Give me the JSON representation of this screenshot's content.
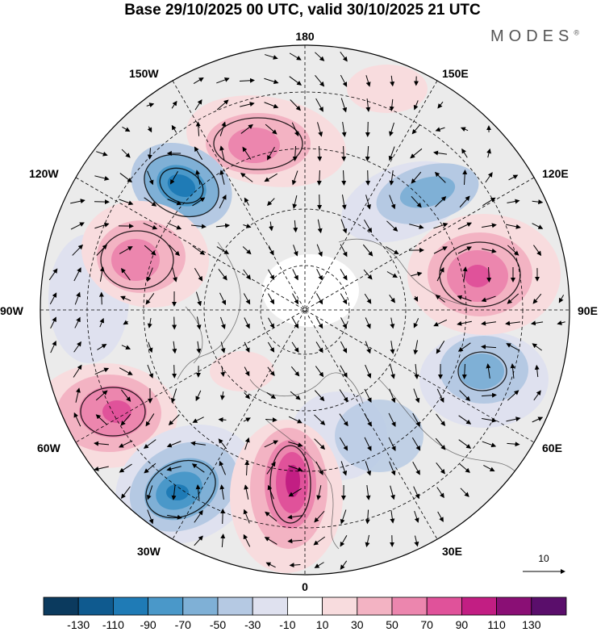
{
  "title": "Base 29/10/2025 00 UTC, valid 30/10/2025 21 UTC",
  "brand": {
    "name": "MODES",
    "mark": "®"
  },
  "longitude_labels": {
    "top": "180",
    "bottom": "0",
    "left": "90W",
    "right": "90E",
    "tl1": "150W",
    "tl2": "120W",
    "tr1": "150E",
    "tr2": "120E",
    "bl1": "60W",
    "bl2": "30W",
    "br1": "60E",
    "br2": "30E"
  },
  "vector_key": {
    "value": "10"
  },
  "colorbar": {
    "labels": [
      "-130",
      "-110",
      "-90",
      "-70",
      "-50",
      "-30",
      "-10",
      "10",
      "30",
      "50",
      "70",
      "90",
      "110",
      "130"
    ],
    "colors": [
      "#0b3a5e",
      "#0f5a8f",
      "#1f7bb6",
      "#4a98c9",
      "#7fb0d6",
      "#b5c9e3",
      "#dfe1ef",
      "#ffffff",
      "#f8dcde",
      "#f3b3c3",
      "#ec86ae",
      "#e0529a",
      "#c21e83",
      "#8a0f75",
      "#5a0e6b"
    ]
  },
  "anomalies": [
    {
      "name": "neg-120w",
      "color": "#1f7bb6"
    },
    {
      "name": "pos-150w",
      "color": "#ec86ae"
    },
    {
      "name": "pos-100w",
      "color": "#ec86ae"
    },
    {
      "name": "pos-90e",
      "color": "#e0529a"
    },
    {
      "name": "neg-75e",
      "color": "#7fb0d6"
    },
    {
      "name": "pos-60w",
      "color": "#e0529a"
    },
    {
      "name": "neg-35w",
      "color": "#1f7bb6"
    },
    {
      "name": "pos-0",
      "color": "#c21e83"
    },
    {
      "name": "neg-130e",
      "color": "#b5c9e3"
    }
  ]
}
